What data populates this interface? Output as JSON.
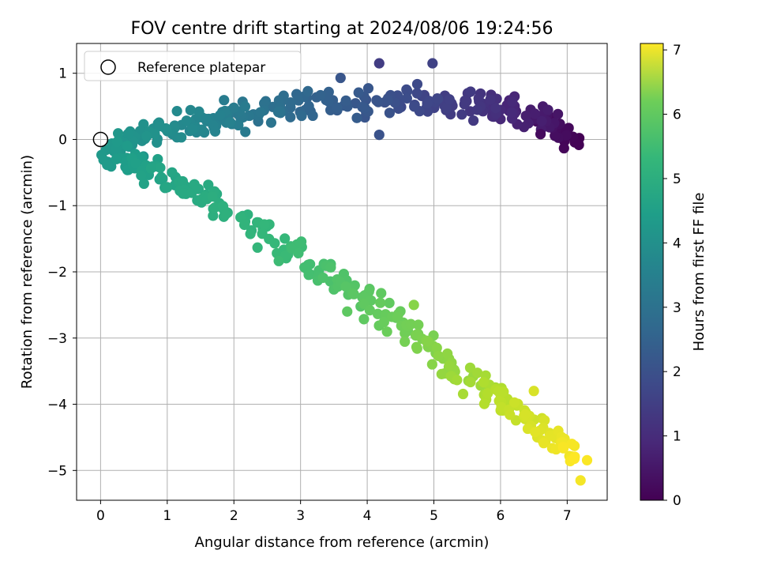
{
  "chart_data": {
    "type": "scatter",
    "title": "FOV centre drift starting at 2024/08/06 19:24:56",
    "xlabel": "Angular distance from reference (arcmin)",
    "ylabel": "Rotation from reference (arcmin)",
    "xlim": [
      -0.36,
      7.6
    ],
    "ylim": [
      -5.45,
      1.45
    ],
    "xticks": [
      0,
      1,
      2,
      3,
      4,
      5,
      6,
      7
    ],
    "yticks": [
      1,
      0,
      -1,
      -2,
      -3,
      -4,
      -5
    ],
    "grid": true,
    "legend": {
      "position": "top-left",
      "entries": [
        "Reference platepar"
      ]
    },
    "reference_point": {
      "x": 0,
      "y": 0
    },
    "colorbar": {
      "label": "Hours from first FF file",
      "min": 0,
      "max": 7.1,
      "ticks": [
        0,
        1,
        2,
        3,
        4,
        5,
        6,
        7
      ],
      "colormap": "viridis"
    },
    "path_keypoints": [
      {
        "hour": 0.0,
        "x": 7.08,
        "y": -0.05
      },
      {
        "hour": 0.5,
        "x": 6.6,
        "y": 0.35
      },
      {
        "hour": 1.0,
        "x": 5.8,
        "y": 0.5
      },
      {
        "hour": 1.5,
        "x": 4.9,
        "y": 0.6
      },
      {
        "hour": 2.0,
        "x": 3.8,
        "y": 0.55
      },
      {
        "hour": 2.6,
        "x": 2.6,
        "y": 0.45
      },
      {
        "hour": 3.1,
        "x": 1.8,
        "y": 0.3
      },
      {
        "hour": 3.5,
        "x": 0.9,
        "y": 0.15
      },
      {
        "hour": 3.8,
        "x": 0.1,
        "y": -0.2
      },
      {
        "hour": 4.1,
        "x": 0.8,
        "y": -0.55
      },
      {
        "hour": 4.4,
        "x": 1.7,
        "y": -0.95
      },
      {
        "hour": 4.8,
        "x": 2.8,
        "y": -1.65
      },
      {
        "hour": 5.2,
        "x": 3.8,
        "y": -2.3
      },
      {
        "hour": 5.6,
        "x": 4.7,
        "y": -2.95
      },
      {
        "hour": 6.1,
        "x": 5.6,
        "y": -3.65
      },
      {
        "hour": 6.6,
        "x": 6.4,
        "y": -4.2
      },
      {
        "hour": 7.1,
        "x": 7.2,
        "y": -4.8
      }
    ],
    "outliers": [
      {
        "hour": 1.3,
        "x": 4.18,
        "y": 1.15
      },
      {
        "hour": 1.4,
        "x": 4.98,
        "y": 1.15
      },
      {
        "hour": 1.9,
        "x": 3.6,
        "y": 0.93
      },
      {
        "hour": 1.8,
        "x": 4.18,
        "y": 0.07
      },
      {
        "hour": 0.2,
        "x": 6.6,
        "y": 0.08
      },
      {
        "hour": 5.8,
        "x": 4.7,
        "y": -2.5
      },
      {
        "hour": 5.3,
        "x": 3.7,
        "y": -2.6
      },
      {
        "hour": 6.7,
        "x": 6.5,
        "y": -3.8
      },
      {
        "hour": 7.0,
        "x": 7.2,
        "y": -5.15
      }
    ],
    "n_points": 560,
    "spread": 0.1
  }
}
